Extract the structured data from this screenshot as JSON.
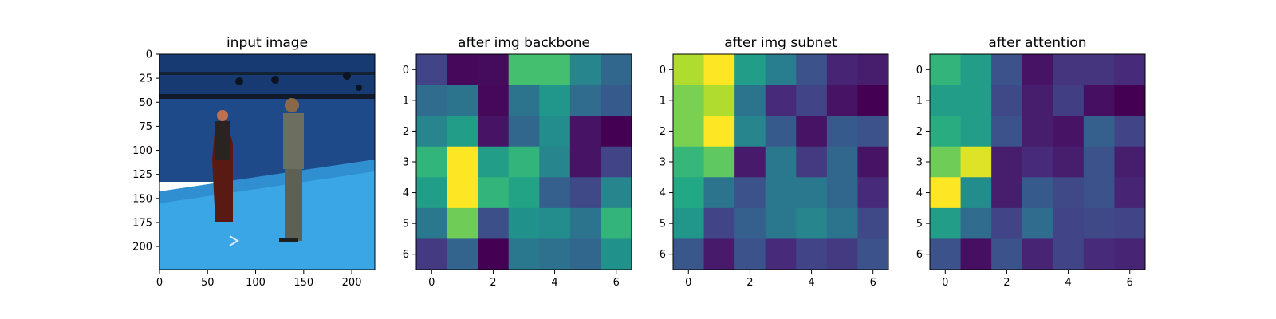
{
  "figure": {
    "colormap": "viridis",
    "colormap_stops": [
      "#440154",
      "#482475",
      "#414487",
      "#355f8d",
      "#2a788e",
      "#21918c",
      "#22a884",
      "#44bf70",
      "#7ad151",
      "#bddf26",
      "#fde725"
    ]
  },
  "chart_data": [
    {
      "type": "heatmap",
      "title": "input image",
      "content": "photo: blue motion-capture studio with two people facing each other",
      "x_ticks": [
        0,
        50,
        100,
        150,
        200
      ],
      "y_ticks": [
        0,
        25,
        50,
        75,
        100,
        125,
        150,
        175,
        200
      ],
      "xlim": [
        0,
        224
      ],
      "ylim": [
        224,
        0
      ],
      "image_colors": {
        "wall": "#1f4a8a",
        "floor": "#3aa6e6",
        "figure_dark": "#2a2420",
        "figure_red": "#5a1a14",
        "figure_gray": "#6c6f60",
        "head": "#c07050"
      }
    },
    {
      "type": "heatmap",
      "title": "after img backbone",
      "x_ticks": [
        0,
        2,
        4,
        6
      ],
      "y_ticks": [
        0,
        1,
        2,
        3,
        4,
        5,
        6
      ],
      "xlim": [
        -0.5,
        6.5
      ],
      "ylim": [
        6.5,
        -0.5
      ],
      "values": [
        [
          0.2,
          0.02,
          0.03,
          0.7,
          0.7,
          0.45,
          0.33
        ],
        [
          0.35,
          0.38,
          0.02,
          0.38,
          0.52,
          0.35,
          0.28
        ],
        [
          0.45,
          0.55,
          0.05,
          0.33,
          0.48,
          0.05,
          0.0
        ],
        [
          0.65,
          1.0,
          0.55,
          0.65,
          0.45,
          0.05,
          0.2
        ],
        [
          0.55,
          1.0,
          0.65,
          0.58,
          0.3,
          0.22,
          0.45
        ],
        [
          0.4,
          0.78,
          0.24,
          0.5,
          0.48,
          0.38,
          0.65
        ],
        [
          0.17,
          0.32,
          0.0,
          0.4,
          0.37,
          0.33,
          0.5
        ]
      ]
    },
    {
      "type": "heatmap",
      "title": "after img subnet",
      "x_ticks": [
        0,
        2,
        4,
        6
      ],
      "y_ticks": [
        0,
        1,
        2,
        3,
        4,
        5,
        6
      ],
      "xlim": [
        -0.5,
        6.5
      ],
      "ylim": [
        6.5,
        -0.5
      ],
      "values": [
        [
          0.88,
          1.0,
          0.55,
          0.42,
          0.25,
          0.1,
          0.08
        ],
        [
          0.8,
          0.88,
          0.38,
          0.12,
          0.2,
          0.05,
          0.0
        ],
        [
          0.8,
          1.0,
          0.45,
          0.28,
          0.05,
          0.28,
          0.25
        ],
        [
          0.66,
          0.75,
          0.07,
          0.4,
          0.17,
          0.33,
          0.05
        ],
        [
          0.6,
          0.38,
          0.25,
          0.4,
          0.4,
          0.33,
          0.12
        ],
        [
          0.52,
          0.2,
          0.3,
          0.4,
          0.45,
          0.38,
          0.22
        ],
        [
          0.27,
          0.07,
          0.25,
          0.12,
          0.2,
          0.17,
          0.25
        ]
      ]
    },
    {
      "type": "heatmap",
      "title": "after attention",
      "x_ticks": [
        0,
        2,
        4,
        6
      ],
      "y_ticks": [
        0,
        1,
        2,
        3,
        4,
        5,
        6
      ],
      "xlim": [
        -0.5,
        6.5
      ],
      "ylim": [
        6.5,
        -0.5
      ],
      "values": [
        [
          0.65,
          0.55,
          0.25,
          0.05,
          0.15,
          0.15,
          0.12
        ],
        [
          0.55,
          0.55,
          0.22,
          0.08,
          0.18,
          0.04,
          0.0
        ],
        [
          0.62,
          0.55,
          0.25,
          0.08,
          0.05,
          0.3,
          0.2
        ],
        [
          0.78,
          0.95,
          0.08,
          0.12,
          0.08,
          0.25,
          0.08
        ],
        [
          1.0,
          0.48,
          0.08,
          0.28,
          0.22,
          0.25,
          0.1
        ],
        [
          0.55,
          0.35,
          0.2,
          0.35,
          0.2,
          0.22,
          0.2
        ],
        [
          0.25,
          0.04,
          0.25,
          0.1,
          0.2,
          0.12,
          0.1
        ]
      ]
    }
  ]
}
